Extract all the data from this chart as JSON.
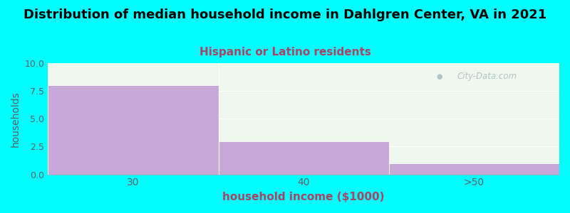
{
  "title": "Distribution of median household income in Dahlgren Center, VA in 2021",
  "subtitle": "Hispanic or Latino residents",
  "xlabel": "household income ($1000)",
  "ylabel": "households",
  "categories": [
    "30",
    "40",
    ">50"
  ],
  "values": [
    8,
    3,
    1
  ],
  "bin_edges": [
    0,
    1,
    2,
    3
  ],
  "ylim": [
    0,
    10
  ],
  "yticks": [
    0,
    2.5,
    5,
    7.5,
    10
  ],
  "bar_color": "#C8A8D8",
  "background_color": "#00FFFF",
  "plot_bg_color": "#EEF8EE",
  "title_fontsize": 13,
  "subtitle_fontsize": 11,
  "subtitle_color": "#AA4466",
  "axis_label_color": "#336666",
  "tick_color": "#556666",
  "watermark_text": "City-Data.com",
  "watermark_color": "#AABBBB",
  "title_color": "#000000",
  "xlabel_color": "#AA4466",
  "ylabel_color": "#556666"
}
